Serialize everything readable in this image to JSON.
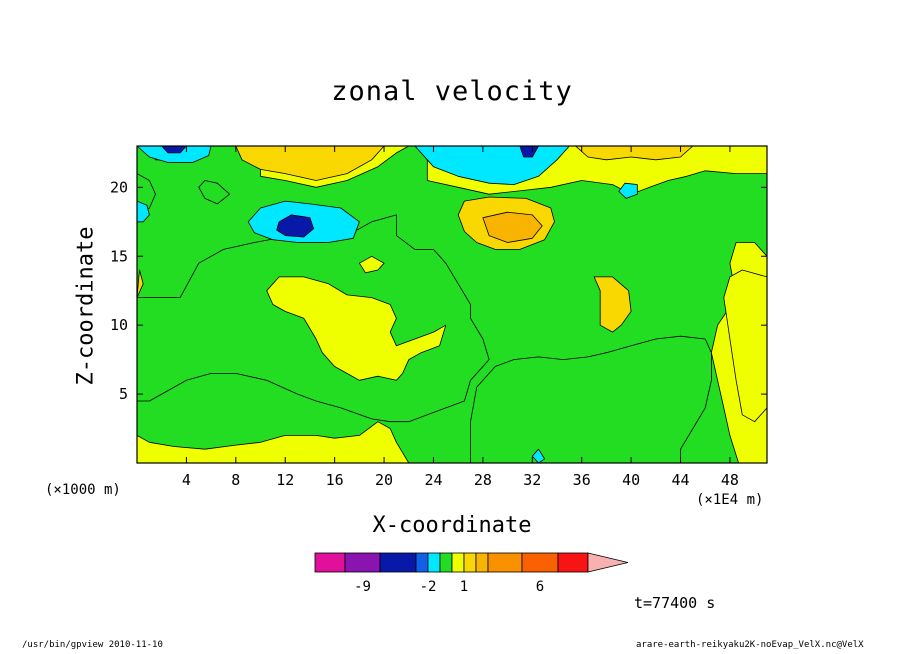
{
  "footer": {
    "left": "/usr/bin/gpview 2010-11-10",
    "right": "arare-earth-reikyaku2K-noEvap_VelX.nc@VelX"
  },
  "time_label": "t=77400 s",
  "colors": {
    "z_lt_-10": "#e0109c",
    "z_-10_-8": "#8a14b0",
    "z_-8_-3": "#0818a8",
    "z_-3_-2": "#1060e8",
    "z_-2_-1": "#00e8ff",
    "z_-1_0": "#22dd22",
    "z_0_1": "#f0ff00",
    "z_1_2": "#f8d800",
    "z_2_3": "#f8b400",
    "z_3_5": "#f89000",
    "z_5_7": "#f86000",
    "z_7_9": "#f81414",
    "z_9_11": "#f87878",
    "z_gt_11": "#f8b0b0"
  },
  "chart_data": {
    "type": "contour",
    "title": "zonal velocity",
    "xlabel": "X-coordinate",
    "ylabel": "Z-coordinate",
    "x_unit_label": "(×1E4 m)",
    "y_unit_label": "(×1000 m)",
    "xlim": [
      0,
      51
    ],
    "ylim": [
      0,
      23
    ],
    "x_ticks": [
      4,
      8,
      12,
      16,
      20,
      24,
      28,
      32,
      36,
      40,
      44,
      48
    ],
    "y_ticks": [
      5,
      10,
      15,
      20
    ],
    "colorbar": {
      "levels": [
        -10,
        -8,
        -3,
        -2,
        -1,
        0,
        1,
        2,
        3,
        5,
        7,
        9,
        11
      ],
      "tick_labels": [
        {
          "value": -9,
          "label": "-9"
        },
        {
          "value": -2,
          "label": "-2"
        },
        {
          "value": 1,
          "label": "1"
        },
        {
          "value": 6,
          "label": "6"
        }
      ]
    },
    "regions": [
      {
        "level": 0.5,
        "key": "z_0_1",
        "points": [
          [
            0,
            15
          ],
          [
            0,
            0
          ],
          [
            51,
            0
          ],
          [
            51,
            23
          ],
          [
            0,
            23
          ]
        ]
      },
      {
        "level": -0.5,
        "key": "z_-1_0",
        "points": [
          [
            0,
            23
          ],
          [
            10,
            23
          ],
          [
            10,
            20.8
          ],
          [
            12,
            20.5
          ],
          [
            14.5,
            20
          ],
          [
            17,
            20.5
          ],
          [
            19.5,
            21.5
          ],
          [
            21,
            22.5
          ],
          [
            22,
            23
          ],
          [
            23.5,
            23
          ],
          [
            23.5,
            20.5
          ],
          [
            26,
            20
          ],
          [
            28.5,
            19.5
          ],
          [
            31.5,
            19.8
          ],
          [
            33.5,
            20
          ],
          [
            36,
            20.5
          ],
          [
            38.5,
            20.2
          ],
          [
            40,
            19.5
          ],
          [
            41.5,
            20
          ],
          [
            43,
            20.5
          ],
          [
            44.5,
            20.8
          ],
          [
            46,
            21.2
          ],
          [
            48.5,
            21
          ],
          [
            51,
            21
          ],
          [
            51,
            15
          ],
          [
            50,
            16
          ],
          [
            48.5,
            16
          ],
          [
            48,
            14.5
          ],
          [
            48.5,
            12
          ],
          [
            47,
            10
          ],
          [
            46.5,
            8
          ],
          [
            47,
            6
          ],
          [
            47.5,
            4
          ],
          [
            48,
            2
          ],
          [
            48.7,
            0
          ],
          [
            27,
            0
          ],
          [
            27,
            3
          ],
          [
            27.5,
            5.5
          ],
          [
            29,
            7
          ],
          [
            30.5,
            7.5
          ],
          [
            32.5,
            7.7
          ],
          [
            34.5,
            7.5
          ],
          [
            36.5,
            7.7
          ],
          [
            38,
            8
          ],
          [
            40,
            8.5
          ],
          [
            42,
            9
          ],
          [
            44,
            9.2
          ],
          [
            46,
            9
          ],
          [
            46.5,
            8
          ],
          [
            46.5,
            6
          ],
          [
            46,
            4
          ],
          [
            45,
            2.5
          ],
          [
            44,
            1
          ],
          [
            44,
            0
          ],
          [
            22,
            0
          ],
          [
            21,
            1.5
          ],
          [
            20.5,
            2.5
          ],
          [
            19.5,
            3
          ],
          [
            18,
            2
          ],
          [
            16,
            1.8
          ],
          [
            14.5,
            2
          ],
          [
            12,
            2
          ],
          [
            10,
            1.5
          ],
          [
            8,
            1.3
          ],
          [
            5.5,
            1
          ],
          [
            3,
            1.2
          ],
          [
            1,
            1.5
          ],
          [
            0,
            2
          ],
          [
            0,
            15
          ]
        ]
      },
      {
        "level": -0.5,
        "key": "z_-1_0",
        "points": [
          [
            0,
            12
          ],
          [
            3.5,
            12
          ],
          [
            5,
            14.5
          ],
          [
            7,
            15.5
          ],
          [
            9.5,
            16
          ],
          [
            12.5,
            16.5
          ],
          [
            15,
            16
          ],
          [
            17,
            16.5
          ],
          [
            19,
            17.5
          ],
          [
            21,
            18
          ],
          [
            21,
            16.5
          ],
          [
            22.5,
            15.5
          ],
          [
            24,
            15.5
          ],
          [
            25,
            14.5
          ],
          [
            26,
            13
          ],
          [
            27,
            11.5
          ],
          [
            27,
            10.5
          ],
          [
            28,
            9
          ],
          [
            28.5,
            7.5
          ],
          [
            27,
            6
          ],
          [
            26.5,
            4.5
          ],
          [
            25,
            4
          ],
          [
            23.5,
            3.5
          ],
          [
            22,
            3
          ],
          [
            20.5,
            3
          ],
          [
            19,
            3.2
          ],
          [
            16.5,
            4
          ],
          [
            14.5,
            4.5
          ],
          [
            13,
            5
          ],
          [
            10.5,
            6
          ],
          [
            8,
            6.5
          ],
          [
            6,
            6.5
          ],
          [
            4,
            6
          ],
          [
            2,
            5
          ],
          [
            1,
            4.5
          ],
          [
            0,
            4.5
          ]
        ]
      },
      {
        "level": 0.5,
        "key": "z_0_1",
        "points": [
          [
            10.5,
            12.5
          ],
          [
            11.5,
            13.5
          ],
          [
            13.5,
            13.5
          ],
          [
            15.5,
            13
          ],
          [
            17,
            12.2
          ],
          [
            19,
            12
          ],
          [
            20.5,
            11.5
          ],
          [
            21,
            10.5
          ],
          [
            20.5,
            9.5
          ],
          [
            21,
            8.5
          ],
          [
            22.5,
            9
          ],
          [
            24,
            9.5
          ],
          [
            25,
            10
          ],
          [
            24.5,
            8.5
          ],
          [
            23,
            8
          ],
          [
            22,
            7.5
          ],
          [
            21.5,
            6.5
          ],
          [
            21,
            6
          ],
          [
            19.5,
            6.3
          ],
          [
            18,
            6
          ],
          [
            16,
            7
          ],
          [
            15,
            8
          ],
          [
            14.5,
            9
          ],
          [
            13.5,
            10.5
          ],
          [
            12,
            11
          ],
          [
            11,
            11.5
          ]
        ]
      },
      {
        "level": 0.5,
        "key": "z_0_1",
        "points": [
          [
            18,
            14.5
          ],
          [
            19,
            15
          ],
          [
            20,
            14.5
          ],
          [
            19.5,
            14
          ],
          [
            18.5,
            13.8
          ]
        ]
      },
      {
        "level": 0.5,
        "key": "z_0_1",
        "points": [
          [
            48,
            13.5
          ],
          [
            49,
            14
          ],
          [
            51,
            13.5
          ],
          [
            51,
            4
          ],
          [
            50,
            3
          ],
          [
            49,
            3.5
          ],
          [
            48.5,
            6
          ],
          [
            48,
            9
          ],
          [
            47.5,
            12
          ]
        ]
      },
      {
        "level": -0.5,
        "key": "z_-1_0",
        "points": [
          [
            5,
            20
          ],
          [
            5.5,
            20.5
          ],
          [
            6.5,
            20.3
          ],
          [
            7.5,
            19.5
          ],
          [
            6.5,
            18.8
          ],
          [
            5.5,
            19.2
          ]
        ]
      },
      {
        "level": -0.5,
        "key": "z_-1_0",
        "points": [
          [
            1,
            23
          ],
          [
            3,
            23
          ],
          [
            2.5,
            22
          ],
          [
            1.5,
            22
          ]
        ]
      },
      {
        "level": -0.5,
        "key": "z_-1_0",
        "points": [
          [
            0,
            18
          ],
          [
            1,
            18.5
          ],
          [
            1.5,
            19.5
          ],
          [
            1,
            20.5
          ],
          [
            0,
            21
          ]
        ]
      },
      {
        "level": 2,
        "key": "z_1_2",
        "points": [
          [
            8,
            23
          ],
          [
            20,
            23
          ],
          [
            19,
            22
          ],
          [
            17,
            21
          ],
          [
            14.5,
            20.5
          ],
          [
            12,
            21
          ],
          [
            10,
            21.3
          ],
          [
            8.5,
            22
          ]
        ]
      },
      {
        "level": 2,
        "key": "z_1_2",
        "points": [
          [
            35.5,
            23
          ],
          [
            45,
            23
          ],
          [
            44,
            22.2
          ],
          [
            42,
            22
          ],
          [
            40,
            22.2
          ],
          [
            38,
            22
          ],
          [
            36.5,
            22.2
          ]
        ]
      },
      {
        "level": 2,
        "key": "z_1_2",
        "points": [
          [
            26.5,
            19
          ],
          [
            28.5,
            19.3
          ],
          [
            31.5,
            19.2
          ],
          [
            33.5,
            18.5
          ],
          [
            33.8,
            17.5
          ],
          [
            33,
            16.2
          ],
          [
            31,
            15.5
          ],
          [
            29,
            15.5
          ],
          [
            27.5,
            16
          ],
          [
            26.5,
            16.8
          ],
          [
            26,
            18
          ]
        ]
      },
      {
        "level": 2,
        "key": "z_1_2",
        "points": [
          [
            37,
            13.5
          ],
          [
            38.5,
            13.5
          ],
          [
            39.8,
            12.5
          ],
          [
            40,
            11
          ],
          [
            39.2,
            10
          ],
          [
            38.5,
            9.5
          ],
          [
            37.5,
            10
          ],
          [
            37.5,
            12.5
          ]
        ]
      },
      {
        "level": 2,
        "key": "z_1_2",
        "points": [
          [
            0,
            12
          ],
          [
            0.2,
            14
          ],
          [
            0.5,
            13
          ]
        ]
      },
      {
        "level": 3,
        "key": "z_2_3",
        "points": [
          [
            28,
            17.8
          ],
          [
            30,
            18.2
          ],
          [
            32,
            18
          ],
          [
            32.8,
            17.2
          ],
          [
            32,
            16.3
          ],
          [
            30,
            16
          ],
          [
            28.5,
            16.5
          ]
        ]
      },
      {
        "level": -1.5,
        "key": "z_-2_-1",
        "points": [
          [
            9,
            17.5
          ],
          [
            10,
            18.5
          ],
          [
            12,
            19
          ],
          [
            14,
            18.8
          ],
          [
            16.5,
            18.5
          ],
          [
            18,
            17.5
          ],
          [
            17.5,
            16.3
          ],
          [
            15.5,
            16
          ],
          [
            13,
            16
          ],
          [
            11,
            16.2
          ],
          [
            9.5,
            16.7
          ]
        ]
      },
      {
        "level": -1.5,
        "key": "z_-2_-1",
        "points": [
          [
            22.5,
            23
          ],
          [
            35,
            23
          ],
          [
            34,
            22
          ],
          [
            32.5,
            20.8
          ],
          [
            30.5,
            20.2
          ],
          [
            28.5,
            20.3
          ],
          [
            26,
            20.8
          ],
          [
            24,
            21.5
          ]
        ]
      },
      {
        "level": -1.5,
        "key": "z_-2_-1",
        "points": [
          [
            0,
            23
          ],
          [
            6,
            23
          ],
          [
            5.8,
            22.3
          ],
          [
            4.5,
            21.8
          ],
          [
            2.5,
            21.8
          ],
          [
            1,
            22.2
          ]
        ]
      },
      {
        "level": -1.5,
        "key": "z_-2_-1",
        "points": [
          [
            39,
            19.7
          ],
          [
            39.5,
            20.3
          ],
          [
            40.5,
            20.2
          ],
          [
            40.5,
            19.5
          ],
          [
            39.6,
            19.2
          ]
        ]
      },
      {
        "level": -1.5,
        "key": "z_-2_-1",
        "points": [
          [
            0,
            19
          ],
          [
            0.8,
            18.7
          ],
          [
            1,
            18
          ],
          [
            0.5,
            17.5
          ],
          [
            0,
            17.5
          ]
        ]
      },
      {
        "level": -1.5,
        "key": "z_-2_-1",
        "points": [
          [
            32.5,
            1
          ],
          [
            33,
            0.3
          ],
          [
            32.5,
            0
          ],
          [
            32,
            0.5
          ]
        ]
      },
      {
        "level": -5,
        "key": "z_-8_-3",
        "points": [
          [
            11.5,
            17.5
          ],
          [
            12.5,
            18
          ],
          [
            14,
            17.8
          ],
          [
            14.3,
            17
          ],
          [
            13.5,
            16.4
          ],
          [
            12,
            16.5
          ],
          [
            11.3,
            16.9
          ]
        ]
      },
      {
        "level": -5,
        "key": "z_-8_-3",
        "points": [
          [
            2,
            23
          ],
          [
            4,
            23
          ],
          [
            3.5,
            22.5
          ],
          [
            2.5,
            22.5
          ]
        ]
      },
      {
        "level": -5,
        "key": "z_-8_-3",
        "points": [
          [
            31,
            23
          ],
          [
            32.5,
            23
          ],
          [
            32,
            22.2
          ],
          [
            31.3,
            22.2
          ]
        ]
      }
    ]
  }
}
